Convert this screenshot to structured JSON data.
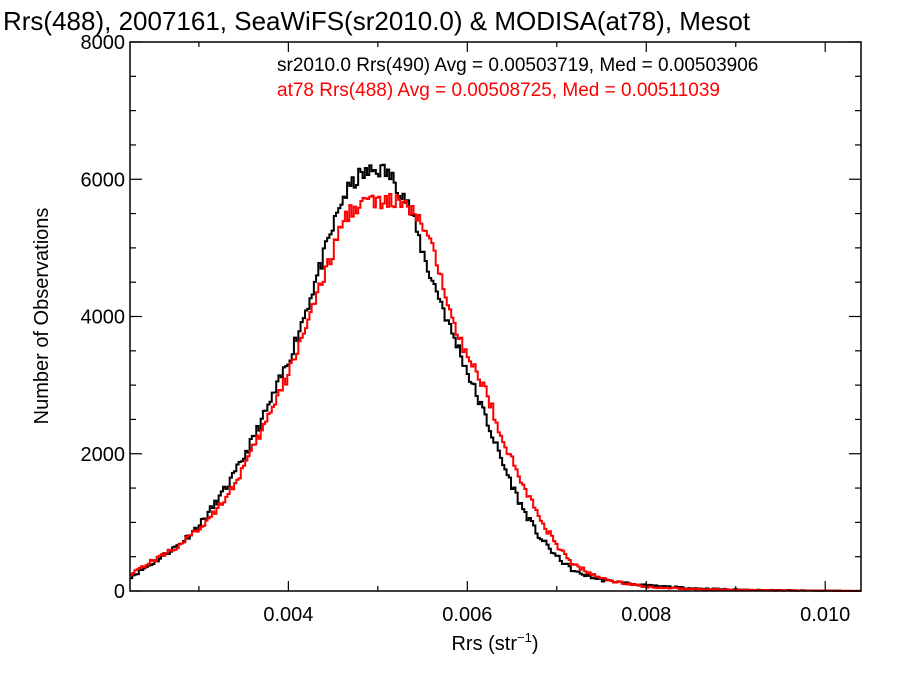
{
  "chart_data": {
    "type": "line",
    "title": "Rrs(488), 2007161, SeaWiFS(sr2010.0) & MODISA(at78), Mesot",
    "xlabel": "Rrs (str",
    "xlabel_sup": "−1",
    "xlabel_close": ")",
    "ylabel": "Number of Observations",
    "xlim": [
      0.00223,
      0.0104
    ],
    "ylim": [
      0,
      8000
    ],
    "x_ticks": [
      0.004,
      0.006,
      0.008,
      0.01
    ],
    "x_tick_labels": [
      "0.004",
      "0.006",
      "0.008",
      "0.010"
    ],
    "y_ticks": [
      0,
      2000,
      4000,
      6000,
      8000
    ],
    "y_tick_labels": [
      "0",
      "2000",
      "4000",
      "6000",
      "8000"
    ],
    "grid": false,
    "legend_position": "top-right",
    "series": [
      {
        "name": "sr2010.0 Rrs(490) Avg = 0.00503719, Med = 0.00503906",
        "color": "#000000",
        "x": [
          0.00223,
          0.0025,
          0.0028,
          0.003,
          0.0032,
          0.0034,
          0.0036,
          0.0038,
          0.004,
          0.0042,
          0.0044,
          0.0045,
          0.0046,
          0.0047,
          0.0048,
          0.0049,
          0.005,
          0.0051,
          0.0052,
          0.0053,
          0.0054,
          0.0055,
          0.0056,
          0.0057,
          0.0058,
          0.0059,
          0.006,
          0.0062,
          0.0064,
          0.0066,
          0.0068,
          0.007,
          0.0072,
          0.0075,
          0.008,
          0.0085,
          0.009,
          0.0095,
          0.01,
          0.0104
        ],
        "y": [
          200,
          420,
          700,
          950,
          1300,
          1700,
          2200,
          2750,
          3350,
          4100,
          4900,
          5300,
          5700,
          5900,
          6050,
          6100,
          6150,
          6100,
          5950,
          5750,
          5400,
          4950,
          4550,
          4250,
          3850,
          3550,
          3200,
          2550,
          1850,
          1250,
          800,
          500,
          280,
          160,
          80,
          40,
          20,
          10,
          5,
          0
        ]
      },
      {
        "name": "at78 Rrs(488) Avg = 0.00508725, Med = 0.00511039",
        "color": "#ff0000",
        "x": [
          0.00223,
          0.0025,
          0.0028,
          0.003,
          0.0032,
          0.0034,
          0.0036,
          0.0038,
          0.004,
          0.0042,
          0.0044,
          0.0045,
          0.0046,
          0.0047,
          0.0048,
          0.0049,
          0.005,
          0.0051,
          0.0052,
          0.0053,
          0.0054,
          0.0055,
          0.0056,
          0.0057,
          0.0058,
          0.0059,
          0.006,
          0.0062,
          0.0064,
          0.0066,
          0.0068,
          0.007,
          0.0072,
          0.0075,
          0.008,
          0.0085,
          0.009,
          0.0095,
          0.01,
          0.0104
        ],
        "y": [
          250,
          450,
          680,
          900,
          1200,
          1550,
          2050,
          2600,
          3150,
          3900,
          4550,
          4950,
          5350,
          5550,
          5650,
          5700,
          5650,
          5650,
          5700,
          5600,
          5500,
          5350,
          5000,
          4600,
          4200,
          3750,
          3400,
          2950,
          2200,
          1600,
          1100,
          650,
          380,
          180,
          60,
          30,
          15,
          8,
          4,
          0
        ]
      }
    ]
  }
}
